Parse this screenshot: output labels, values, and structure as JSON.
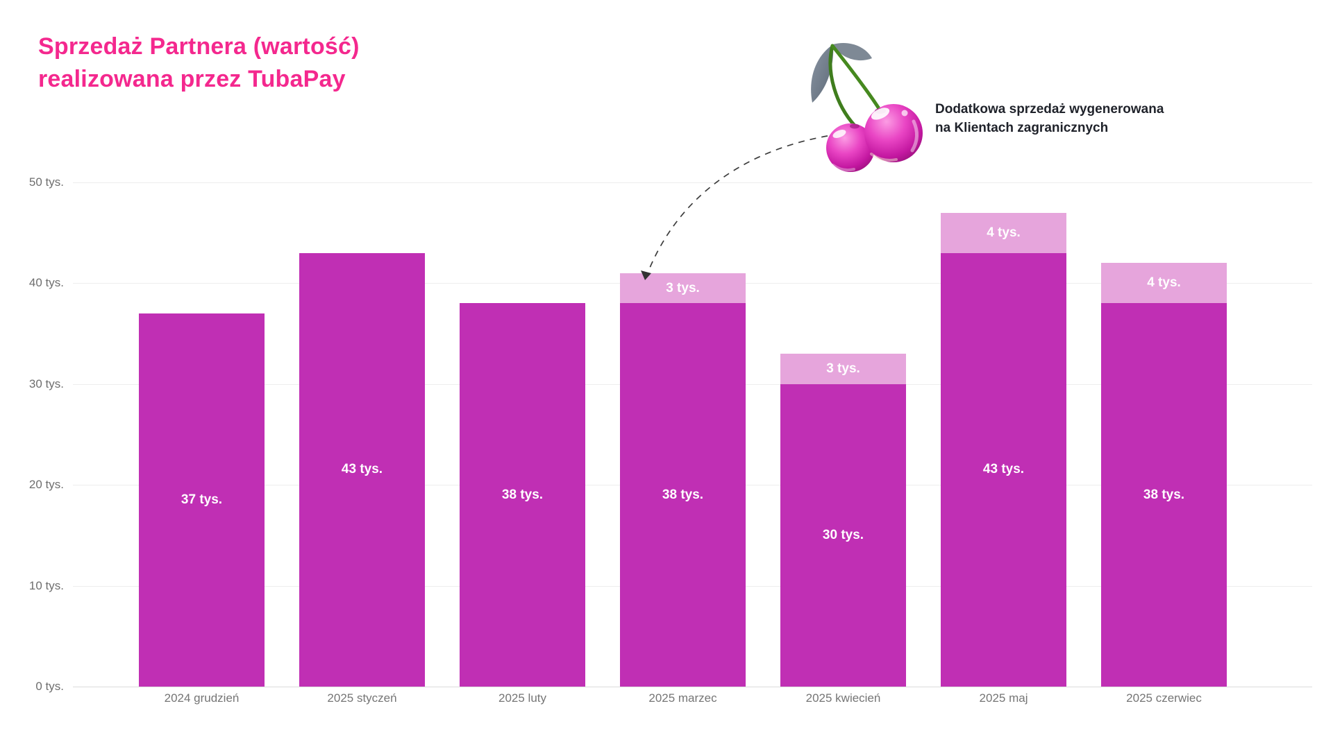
{
  "title": {
    "lines": [
      "Sprzedaż Partnera (wartość)",
      "realizowana przez TubaPay"
    ]
  },
  "annotation": {
    "lines": [
      "Dodatkowa sprzedaż wygenerowana",
      "na Klientach zagranicznych"
    ]
  },
  "colors": {
    "title_pink": "#F4288E",
    "bar_main": "#C02FB4",
    "bar_extra": "#E6A5DC",
    "bar_label": "#FFFFFF",
    "axis_text": "#6E6E6E",
    "x_axis_text": "#757575",
    "gridline": "#EDEDED",
    "zero_line": "#DBDBDB",
    "annotation_text": "#1F222A",
    "arrow": "#3C3C3C",
    "cherry_pink": "#E23CBC",
    "leaf_gray": "#6C7886",
    "stem_green": "#46891F"
  },
  "icons": {
    "cherries": "cherries-illustration",
    "arrow": "dashed-curved-arrow"
  },
  "chart_data": {
    "type": "bar",
    "stacked": true,
    "title": "Sprzedaż Partnera (wartość) realizowana przez TubaPay",
    "xlabel": "",
    "ylabel": "",
    "unit": "tys.",
    "grid": true,
    "legend": "none",
    "ylim": [
      0,
      50
    ],
    "categories": [
      "2024 grudzień",
      "2025 styczeń",
      "2025 luty",
      "2025 marzec",
      "2025 kwiecień",
      "2025 maj",
      "2025 czerwiec"
    ],
    "series": [
      {
        "name": "realizowana przez TubaPay",
        "color": "#C02FB4",
        "values": [
          37,
          43,
          38,
          38,
          30,
          43,
          38
        ],
        "labels": [
          "37 tys.",
          "43 tys.",
          "38 tys.",
          "38 tys.",
          "30 tys.",
          "43 tys.",
          "38 tys."
        ]
      },
      {
        "name": "Dodatkowa sprzedaż wygenerowana na Klientach zagranicznych",
        "color": "#E6A5DC",
        "values": [
          0,
          0,
          0,
          3,
          3,
          4,
          4
        ],
        "labels": [
          null,
          null,
          null,
          "3 tys.",
          "3 tys.",
          "4 tys.",
          "4 tys."
        ]
      }
    ],
    "yticks": [
      {
        "value": 0,
        "label": "0 tys."
      },
      {
        "value": 10,
        "label": "10 tys."
      },
      {
        "value": 20,
        "label": "20 tys."
      },
      {
        "value": 30,
        "label": "30 tys."
      },
      {
        "value": 40,
        "label": "40 tys."
      },
      {
        "value": 50,
        "label": "50 tys."
      }
    ]
  }
}
